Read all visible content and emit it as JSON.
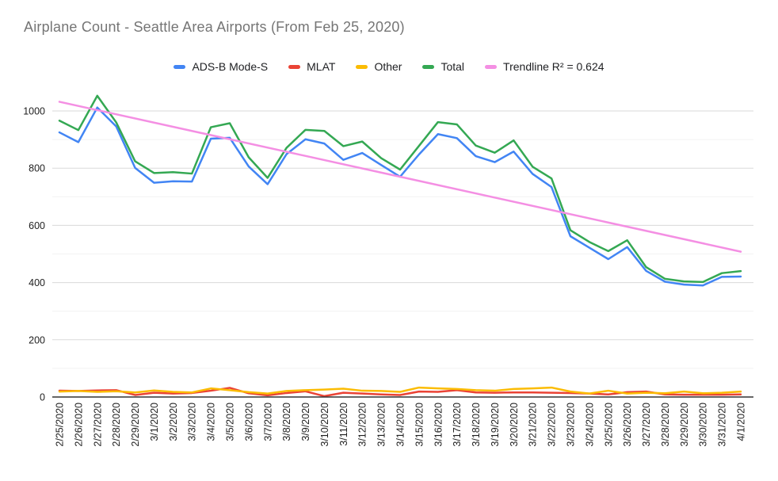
{
  "title": "Airplane Count - Seattle Area Airports (From Feb 25, 2020)",
  "colors": {
    "blue": "#4285F4",
    "red": "#EA4335",
    "yellow": "#FBBC04",
    "green": "#34A853",
    "pink": "#F48FE3",
    "title_text": "#757575",
    "legend_text": "#202124",
    "tick_text": "#1F1F1F",
    "grid_major": "#DADADA",
    "grid_minor": "#F2F2F2",
    "axis_line": "#333333",
    "background": "#FFFFFF"
  },
  "legend": [
    {
      "label": "ADS-B Mode-S",
      "color_key": "blue"
    },
    {
      "label": "MLAT",
      "color_key": "red"
    },
    {
      "label": "Other",
      "color_key": "yellow"
    },
    {
      "label": "Total",
      "color_key": "green"
    },
    {
      "label": "Trendline R² = 0.624",
      "color_key": "pink"
    }
  ],
  "chart_data": {
    "type": "line",
    "title": "Airplane Count - Seattle Area Airports (From Feb 25, 2020)",
    "xlabel": "",
    "ylabel": "",
    "grid": true,
    "legend_position": "top",
    "ylim": [
      0,
      1080
    ],
    "yticks": [
      0,
      200,
      400,
      600,
      800,
      1000
    ],
    "minor_yticks": [
      100,
      300,
      500,
      700,
      900
    ],
    "categories": [
      "2/25/2020",
      "2/26/2020",
      "2/27/2020",
      "2/28/2020",
      "2/29/2020",
      "3/1/2020",
      "3/2/2020",
      "3/3/2020",
      "3/4/2020",
      "3/5/2020",
      "3/6/2020",
      "3/7/2020",
      "3/8/2020",
      "3/9/2020",
      "3/10/2020",
      "3/11/2020",
      "3/12/2020",
      "3/13/2020",
      "3/14/2020",
      "3/15/2020",
      "3/16/2020",
      "3/17/2020",
      "3/18/2020",
      "3/19/2020",
      "3/20/2020",
      "3/21/2020",
      "3/22/2020",
      "3/23/2020",
      "3/24/2020",
      "3/25/2020",
      "3/26/2020",
      "3/27/2020",
      "3/28/2020",
      "3/29/2020",
      "3/30/2020",
      "3/31/2020",
      "4/1/2020"
    ],
    "series": [
      {
        "name": "ADS-B Mode-S",
        "color_key": "blue",
        "values": [
          925,
          891,
          1012,
          946,
          801,
          749,
          754,
          753,
          903,
          906,
          806,
          744,
          849,
          901,
          886,
          829,
          853,
          811,
          770,
          848,
          919,
          905,
          842,
          821,
          858,
          780,
          734,
          562,
          522,
          482,
          524,
          441,
          403,
          393,
          390,
          420,
          421
        ]
      },
      {
        "name": "MLAT",
        "color_key": "red",
        "values": [
          22,
          21,
          23,
          24,
          7,
          15,
          12,
          14,
          22,
          32,
          13,
          6,
          14,
          20,
          3,
          15,
          12,
          9,
          7,
          19,
          18,
          24,
          16,
          15,
          16,
          16,
          15,
          14,
          12,
          9,
          17,
          19,
          9,
          8,
          8,
          8,
          9
        ]
      },
      {
        "name": "Other",
        "color_key": "yellow",
        "values": [
          19,
          21,
          18,
          20,
          16,
          23,
          18,
          16,
          30,
          24,
          17,
          12,
          21,
          24,
          26,
          29,
          22,
          21,
          18,
          33,
          30,
          28,
          24,
          22,
          28,
          30,
          33,
          19,
          12,
          22,
          12,
          15,
          13,
          19,
          13,
          15,
          19
        ]
      },
      {
        "name": "Total",
        "color_key": "green",
        "values": [
          966,
          933,
          1053,
          960,
          824,
          783,
          786,
          781,
          943,
          957,
          838,
          766,
          871,
          934,
          930,
          877,
          893,
          835,
          795,
          878,
          961,
          953,
          879,
          854,
          897,
          805,
          764,
          583,
          542,
          510,
          548,
          454,
          413,
          404,
          402,
          433,
          440
        ]
      }
    ],
    "trendline": {
      "name": "Trendline R² = 0.624",
      "color_key": "pink",
      "r2": 0.624,
      "start_value": 1032,
      "end_value": 508
    }
  }
}
